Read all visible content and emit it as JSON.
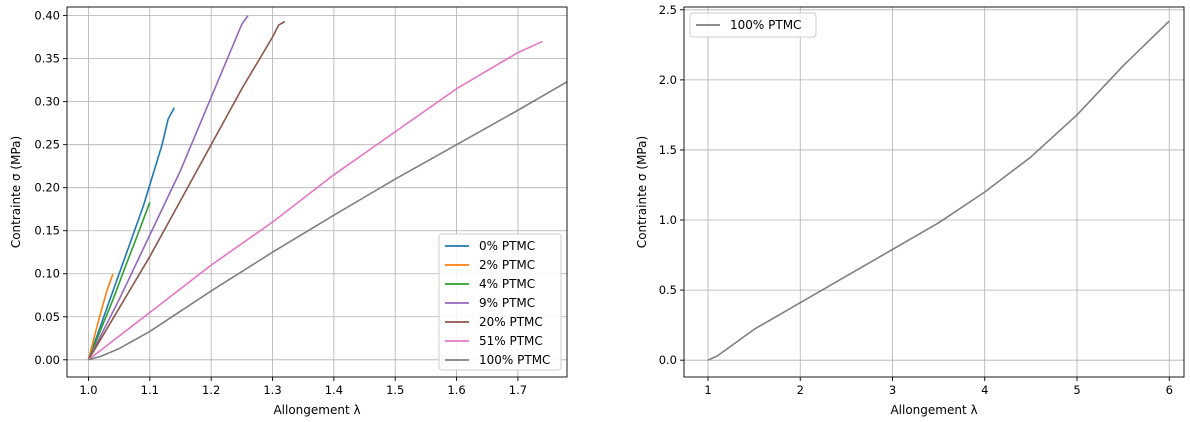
{
  "chart_data": [
    {
      "type": "line",
      "xlabel": "Allongement λ",
      "ylabel": "Contrainte σ (MPa)",
      "xlim": [
        0.965,
        1.78
      ],
      "ylim": [
        -0.02,
        0.41
      ],
      "xticks": [
        1.0,
        1.1,
        1.2,
        1.3,
        1.4,
        1.5,
        1.6,
        1.7
      ],
      "xtick_labels": [
        "1.0",
        "1.1",
        "1.2",
        "1.3",
        "1.4",
        "1.5",
        "1.6",
        "1.7"
      ],
      "yticks": [
        0.0,
        0.05,
        0.1,
        0.15,
        0.2,
        0.25,
        0.3,
        0.35,
        0.4
      ],
      "ytick_labels": [
        "0.00",
        "0.05",
        "0.10",
        "0.15",
        "0.20",
        "0.25",
        "0.30",
        "0.35",
        "0.40"
      ],
      "grid": true,
      "legend_position": "lower-right",
      "series": [
        {
          "name": "0% PTMC",
          "color": "#1f77b4",
          "x": [
            1.0,
            1.03,
            1.06,
            1.09,
            1.12,
            1.13,
            1.14
          ],
          "y": [
            0.0,
            0.06,
            0.12,
            0.18,
            0.25,
            0.28,
            0.293
          ]
        },
        {
          "name": "2% PTMC",
          "color": "#ff7f0e",
          "x": [
            1.0,
            1.01,
            1.02,
            1.03,
            1.04
          ],
          "y": [
            0.0,
            0.028,
            0.055,
            0.08,
            0.1
          ]
        },
        {
          "name": "4% PTMC",
          "color": "#2ca02c",
          "x": [
            1.0,
            1.02,
            1.04,
            1.06,
            1.08,
            1.1
          ],
          "y": [
            0.0,
            0.035,
            0.07,
            0.108,
            0.145,
            0.183
          ]
        },
        {
          "name": "9% PTMC",
          "color": "#9467bd",
          "x": [
            1.0,
            1.05,
            1.1,
            1.15,
            1.2,
            1.25,
            1.26
          ],
          "y": [
            0.0,
            0.07,
            0.145,
            0.22,
            0.305,
            0.39,
            0.4
          ]
        },
        {
          "name": "20% PTMC",
          "color": "#8c564b",
          "x": [
            1.0,
            1.05,
            1.1,
            1.15,
            1.2,
            1.25,
            1.3,
            1.31,
            1.32
          ],
          "y": [
            0.0,
            0.06,
            0.12,
            0.185,
            0.25,
            0.315,
            0.375,
            0.389,
            0.393
          ]
        },
        {
          "name": "51% PTMC",
          "color": "#e377c2",
          "x": [
            1.0,
            1.1,
            1.2,
            1.3,
            1.4,
            1.5,
            1.6,
            1.7,
            1.74
          ],
          "y": [
            0.0,
            0.055,
            0.11,
            0.16,
            0.215,
            0.265,
            0.315,
            0.357,
            0.37
          ]
        },
        {
          "name": "100% PTMC",
          "color": "#7f7f7f",
          "x": [
            1.0,
            1.02,
            1.05,
            1.1,
            1.2,
            1.3,
            1.4,
            1.5,
            1.6,
            1.7,
            1.78
          ],
          "y": [
            0.0,
            0.004,
            0.013,
            0.033,
            0.08,
            0.125,
            0.168,
            0.21,
            0.25,
            0.29,
            0.323
          ]
        }
      ]
    },
    {
      "type": "line",
      "xlabel": "Allongement λ",
      "ylabel": "Contrainte σ (MPa)",
      "xlim": [
        0.74,
        6.16
      ],
      "ylim": [
        -0.12,
        2.52
      ],
      "xticks": [
        1,
        2,
        3,
        4,
        5,
        6
      ],
      "xtick_labels": [
        "1",
        "2",
        "3",
        "4",
        "5",
        "6"
      ],
      "yticks": [
        0.0,
        0.5,
        1.0,
        1.5,
        2.0,
        2.5
      ],
      "ytick_labels": [
        "0.0",
        "0.5",
        "1.0",
        "1.5",
        "2.0",
        "2.5"
      ],
      "grid": true,
      "legend_position": "top-left",
      "series": [
        {
          "name": "100% PTMC",
          "color": "#7f7f7f",
          "x": [
            1.0,
            1.1,
            1.5,
            2.0,
            2.5,
            3.0,
            3.5,
            4.0,
            4.5,
            5.0,
            5.5,
            6.0
          ],
          "y": [
            0.0,
            0.03,
            0.22,
            0.41,
            0.6,
            0.79,
            0.98,
            1.2,
            1.45,
            1.75,
            2.1,
            2.42
          ]
        }
      ]
    }
  ]
}
